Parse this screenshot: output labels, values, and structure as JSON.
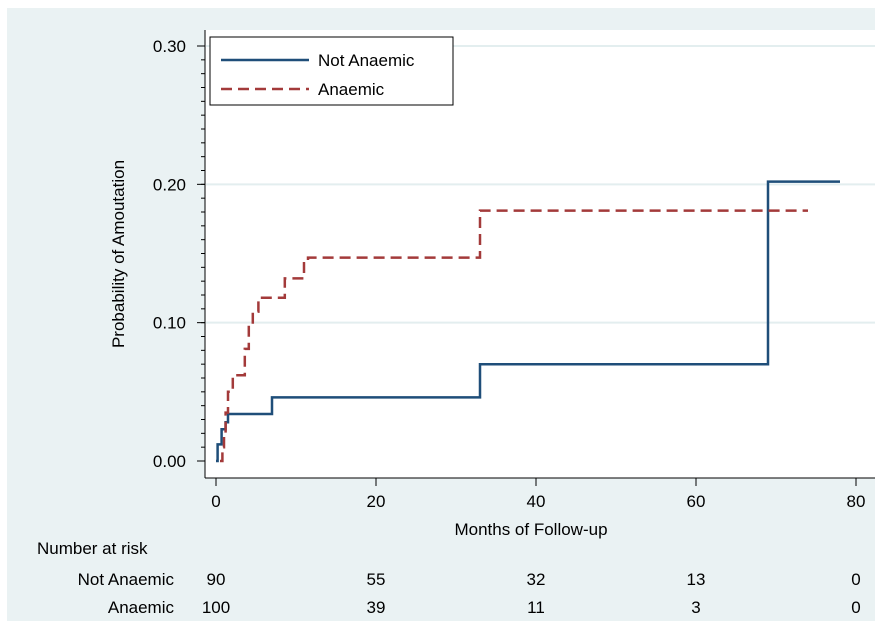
{
  "chart_data": {
    "type": "line",
    "xlabel": "Months of Follow-up",
    "ylabel": "Probability of Amoutation",
    "xlim": [
      0,
      80
    ],
    "ylim": [
      0,
      0.3
    ],
    "x_ticks": [
      "0",
      "20",
      "40",
      "60",
      "80"
    ],
    "x_tick_values": [
      0,
      20,
      40,
      60,
      80
    ],
    "y_ticks": [
      "0.00",
      "0.10",
      "0.20",
      "0.30"
    ],
    "y_tick_values": [
      0,
      0.1,
      0.2,
      0.3
    ],
    "grid": "horizontal",
    "legend_position": "top-left",
    "series": [
      {
        "name": "Not Anaemic",
        "color": "#1f4e79",
        "style": "solid",
        "x": [
          0,
          0.2,
          0.2,
          0.7,
          0.7,
          1.2,
          1.2,
          1.5,
          1.5,
          7,
          7,
          33,
          33,
          69,
          69,
          78
        ],
        "y": [
          0,
          0,
          0.012,
          0.012,
          0.023,
          0.023,
          0.028,
          0.028,
          0.034,
          0.034,
          0.046,
          0.046,
          0.07,
          0.07,
          0.202,
          0.202
        ]
      },
      {
        "name": "Anaemic",
        "color": "#a33a3a",
        "style": "dashed",
        "x": [
          0.5,
          0.8,
          0.8,
          1.0,
          1.0,
          1.2,
          1.2,
          1.5,
          1.5,
          2.1,
          2.1,
          2.8,
          2.8,
          3.6,
          3.6,
          4.1,
          4.1,
          4.6,
          4.6,
          5.3,
          5.3,
          7.0,
          7.0,
          8.6,
          8.6,
          11.0,
          11.0,
          11.5,
          11.5,
          33,
          33,
          74
        ],
        "y": [
          0,
          0,
          0.01,
          0.01,
          0.02,
          0.02,
          0.035,
          0.035,
          0.05,
          0.05,
          0.062,
          0.062,
          0.062,
          0.062,
          0.081,
          0.081,
          0.099,
          0.099,
          0.108,
          0.108,
          0.118,
          0.118,
          0.118,
          0.118,
          0.132,
          0.132,
          0.143,
          0.143,
          0.147,
          0.147,
          0.181,
          0.181
        ]
      }
    ],
    "risk_table": {
      "title": "Number at risk",
      "rows": [
        {
          "label": "Not Anaemic",
          "values": [
            "90",
            "55",
            "32",
            "13",
            "0"
          ]
        },
        {
          "label": "Anaemic",
          "values": [
            "100",
            "39",
            "11",
            "3",
            "0"
          ]
        }
      ]
    }
  }
}
